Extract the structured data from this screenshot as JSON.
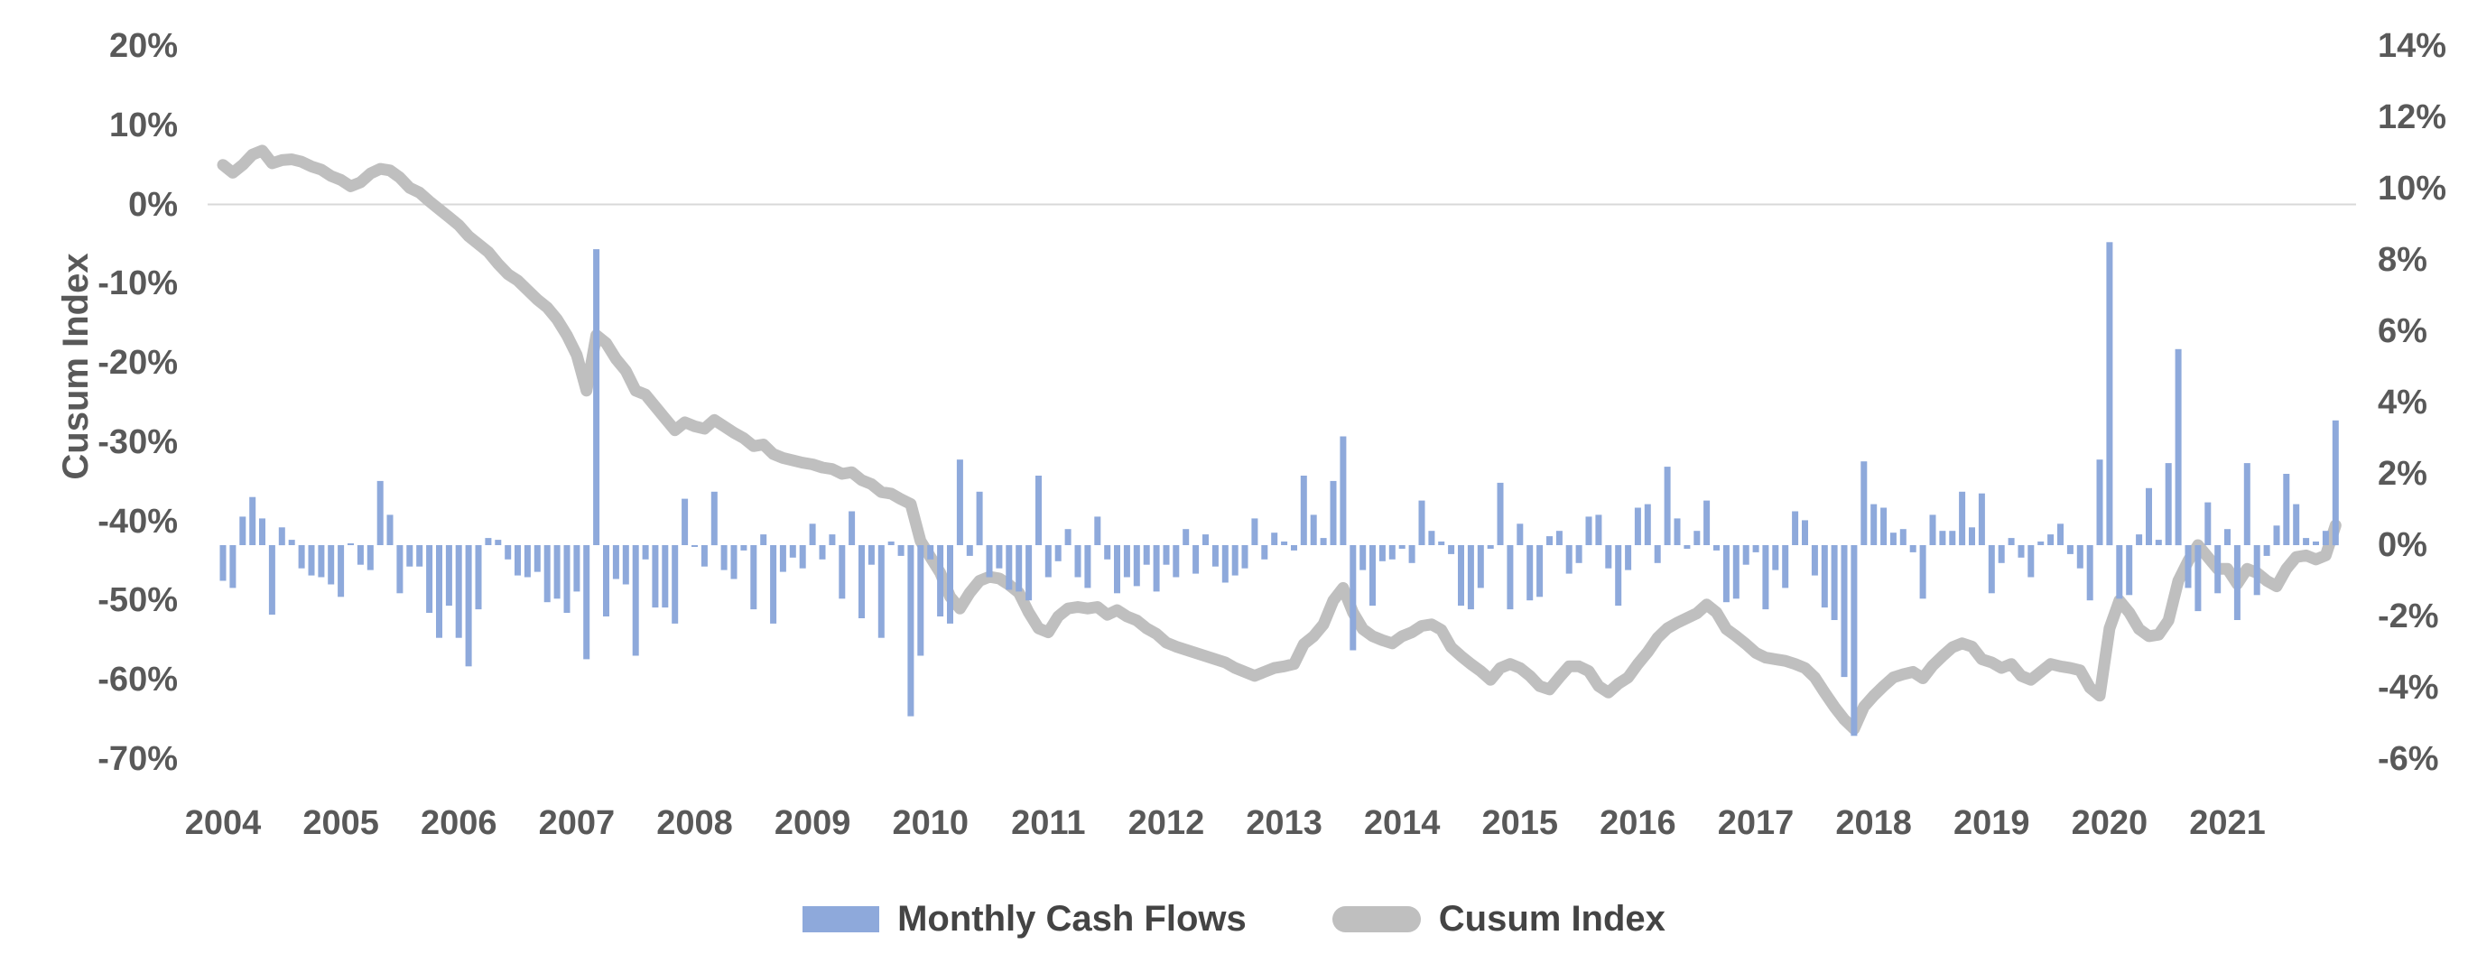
{
  "page": {
    "background": "#ffffff"
  },
  "legend": {
    "items": [
      {
        "label": "Monthly Cash Flows",
        "shape": "rect",
        "color": "#8EA9DB"
      },
      {
        "label": "Cusum Index",
        "shape": "line",
        "color": "#BFBFBF"
      }
    ]
  },
  "chart_data": {
    "type": "bar",
    "subtype": "dual-axis bar+line combo",
    "title": "",
    "xlabel": "",
    "ylabel": "Cusum Index",
    "grid": "single horizontal gridline at primary 0%",
    "gridline_color": "#D9D9D9",
    "text_color": "#595959",
    "categories": [
      "2004",
      "2005",
      "2006",
      "2007",
      "2008",
      "2009",
      "2010",
      "2011",
      "2012",
      "2013",
      "2014",
      "2015",
      "2016",
      "2017",
      "2018",
      "2019",
      "2020",
      "2021"
    ],
    "months_per_category": 12,
    "left_axis": {
      "title": "Cusum Index",
      "min": -70,
      "max": 20,
      "step": 10,
      "tick_labels": [
        "20%",
        "10%",
        "0%",
        "-10%",
        "-20%",
        "-30%",
        "-40%",
        "-50%",
        "-60%",
        "-70%"
      ]
    },
    "right_axis": {
      "min": -6,
      "max": 14,
      "step": 2,
      "tick_labels": [
        "14%",
        "12%",
        "10%",
        "8%",
        "6%",
        "4%",
        "2%",
        "0%",
        "-2%",
        "-4%",
        "-6%"
      ]
    },
    "series": [
      {
        "name": "Monthly Cash Flows",
        "type": "bar",
        "axis": "right",
        "color": "#8EA9DB",
        "values": [
          -1.0,
          -1.2,
          0.8,
          1.35,
          0.75,
          -1.95,
          0.5,
          0.15,
          -0.65,
          -0.85,
          -0.9,
          -1.1,
          -1.45,
          0.05,
          -0.55,
          -0.7,
          1.8,
          0.85,
          -1.35,
          -0.6,
          -0.6,
          -1.9,
          -2.6,
          -1.7,
          -2.6,
          -3.4,
          -1.8,
          0.2,
          0.15,
          -0.4,
          -0.85,
          -0.9,
          -0.75,
          -1.6,
          -1.5,
          -1.9,
          -1.3,
          -3.2,
          8.3,
          -2.0,
          -0.95,
          -1.1,
          -3.1,
          -0.4,
          -1.75,
          -1.75,
          -2.2,
          1.3,
          -0.05,
          -0.6,
          1.5,
          -0.7,
          -0.95,
          -0.15,
          -1.8,
          0.3,
          -2.2,
          -0.75,
          -0.35,
          -0.65,
          0.6,
          -0.4,
          0.3,
          -1.5,
          0.95,
          -2.05,
          -0.55,
          -2.6,
          0.1,
          -0.3,
          -4.8,
          -3.1,
          -0.4,
          -2.0,
          -2.2,
          2.4,
          -0.3,
          1.5,
          -0.9,
          -0.65,
          -1.25,
          -1.3,
          -1.55,
          1.95,
          -0.9,
          -0.45,
          0.45,
          -0.9,
          -1.2,
          0.8,
          -0.4,
          -1.35,
          -0.9,
          -1.15,
          -0.55,
          -1.3,
          -0.55,
          -0.9,
          0.45,
          -0.8,
          0.3,
          -0.6,
          -1.05,
          -0.85,
          -0.65,
          0.75,
          -0.4,
          0.35,
          0.1,
          -0.15,
          1.95,
          0.85,
          0.2,
          1.8,
          3.05,
          -2.95,
          -0.7,
          -1.7,
          -0.45,
          -0.4,
          -0.1,
          -0.5,
          1.25,
          0.4,
          0.1,
          -0.25,
          -1.7,
          -1.8,
          -1.2,
          -0.1,
          1.75,
          -1.8,
          0.6,
          -1.55,
          -1.45,
          0.25,
          0.4,
          -0.8,
          -0.5,
          0.8,
          0.85,
          -0.65,
          -1.7,
          -0.7,
          1.05,
          1.15,
          -0.5,
          2.2,
          0.75,
          -0.1,
          0.4,
          1.25,
          -0.15,
          -1.6,
          -1.5,
          -0.55,
          -0.2,
          -1.8,
          -0.7,
          -1.2,
          0.95,
          0.7,
          -0.85,
          -1.75,
          -2.1,
          -3.7,
          -5.35,
          2.35,
          1.15,
          1.05,
          0.35,
          0.45,
          -0.2,
          -1.5,
          0.85,
          0.4,
          0.4,
          1.5,
          0.5,
          1.45,
          -1.35,
          -0.5,
          0.2,
          -0.35,
          -0.9,
          0.1,
          0.3,
          0.6,
          -0.25,
          -0.65,
          -1.55,
          2.4,
          8.5,
          -1.5,
          -1.4,
          0.3,
          1.6,
          0.15,
          2.3,
          5.5,
          -1.2,
          -1.85,
          1.2,
          -1.35,
          0.45,
          -2.1,
          2.3,
          -1.4,
          -0.3,
          0.55,
          2.0,
          1.15,
          0.2,
          0.1,
          0.4,
          3.5
        ]
      },
      {
        "name": "Cusum Index",
        "type": "line",
        "axis": "left",
        "color": "#BFBFBF",
        "stroke_width": 13,
        "values": [
          5.0,
          4.0,
          5.0,
          6.3,
          6.8,
          5.2,
          5.6,
          5.7,
          5.4,
          4.8,
          4.4,
          3.6,
          3.1,
          2.3,
          2.8,
          3.9,
          4.5,
          4.3,
          3.4,
          2.1,
          1.5,
          0.4,
          -0.6,
          -1.6,
          -2.6,
          -4.0,
          -5.0,
          -6.0,
          -7.5,
          -8.8,
          -9.6,
          -10.8,
          -12.0,
          -13.0,
          -14.5,
          -16.5,
          -19.0,
          -23.5,
          -16.5,
          -17.5,
          -19.5,
          -21.0,
          -23.5,
          -24.0,
          -25.5,
          -27.0,
          -28.5,
          -27.5,
          -28.0,
          -28.3,
          -27.2,
          -28.0,
          -28.8,
          -29.5,
          -30.5,
          -30.3,
          -31.5,
          -32.0,
          -32.3,
          -32.6,
          -32.8,
          -33.2,
          -33.4,
          -34.0,
          -33.8,
          -34.8,
          -35.3,
          -36.3,
          -36.5,
          -37.2,
          -37.8,
          -42.5,
          -44.5,
          -46.5,
          -49.5,
          -51.0,
          -49.0,
          -47.5,
          -47.0,
          -47.2,
          -48.0,
          -49.0,
          -51.5,
          -53.5,
          -54.0,
          -52.0,
          -51.0,
          -50.8,
          -51.0,
          -50.8,
          -51.8,
          -51.2,
          -52.0,
          -52.5,
          -53.5,
          -54.2,
          -55.3,
          -55.8,
          -56.2,
          -56.6,
          -57.0,
          -57.4,
          -57.8,
          -58.5,
          -59.0,
          -59.5,
          -59.0,
          -58.5,
          -58.3,
          -58.0,
          -55.5,
          -54.5,
          -53.0,
          -50.0,
          -48.4,
          -51.5,
          -53.6,
          -54.5,
          -55.0,
          -55.4,
          -54.5,
          -54.0,
          -53.2,
          -53.0,
          -53.7,
          -55.9,
          -57.0,
          -58.0,
          -58.9,
          -60.0,
          -58.5,
          -58.0,
          -58.5,
          -59.5,
          -60.8,
          -61.2,
          -59.7,
          -58.3,
          -58.3,
          -58.9,
          -60.8,
          -61.6,
          -60.5,
          -59.7,
          -58.0,
          -56.5,
          -54.7,
          -53.5,
          -52.8,
          -52.2,
          -51.6,
          -50.5,
          -51.5,
          -53.6,
          -54.5,
          -55.5,
          -56.6,
          -57.2,
          -57.4,
          -57.6,
          -58.0,
          -58.5,
          -59.7,
          -61.6,
          -63.4,
          -65.0,
          -66.2,
          -63.4,
          -62.0,
          -60.8,
          -59.7,
          -59.3,
          -59.0,
          -59.8,
          -58.2,
          -57.0,
          -55.9,
          -55.4,
          -55.8,
          -57.4,
          -57.8,
          -58.5,
          -58.0,
          -59.5,
          -60.0,
          -59.0,
          -58.0,
          -58.3,
          -58.5,
          -58.8,
          -61.0,
          -62.0,
          -53.5,
          -50.0,
          -51.5,
          -53.6,
          -54.5,
          -54.3,
          -52.5,
          -47.5,
          -45.0,
          -43.0,
          -44.5,
          -46.0,
          -46.0,
          -47.9,
          -46.0,
          -46.5,
          -47.5,
          -48.2,
          -46.0,
          -44.5,
          -44.3,
          -44.8,
          -44.3,
          -40.5
        ]
      }
    ],
    "legend_position": "bottom"
  }
}
